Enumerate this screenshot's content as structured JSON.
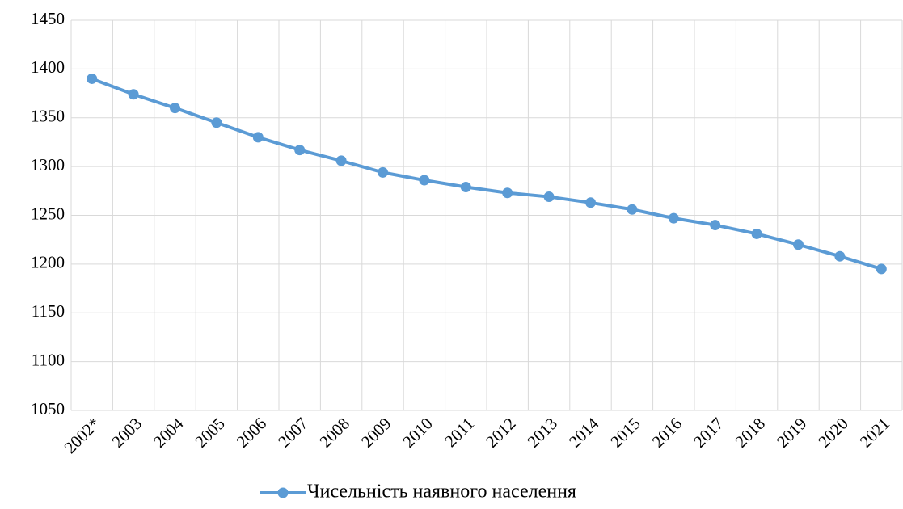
{
  "chart_data": {
    "type": "line",
    "categories": [
      "2002*",
      "2003",
      "2004",
      "2005",
      "2006",
      "2007",
      "2008",
      "2009",
      "2010",
      "2011",
      "2012",
      "2013",
      "2014",
      "2015",
      "2016",
      "2017",
      "2018",
      "2019",
      "2020",
      "2021"
    ],
    "series": [
      {
        "name": "Чисельність наявного населення",
        "color": "#5b9bd5",
        "values": [
          1390,
          1374,
          1360,
          1345,
          1330,
          1317,
          1306,
          1294,
          1286,
          1279,
          1273,
          1269,
          1263,
          1256,
          1247,
          1240,
          1231,
          1220,
          1208,
          1195
        ]
      }
    ],
    "ylim": [
      1050,
      1450
    ],
    "yticks": [
      1050,
      1100,
      1150,
      1200,
      1250,
      1300,
      1350,
      1400,
      1450
    ],
    "grid": true,
    "legend": "bottom"
  }
}
